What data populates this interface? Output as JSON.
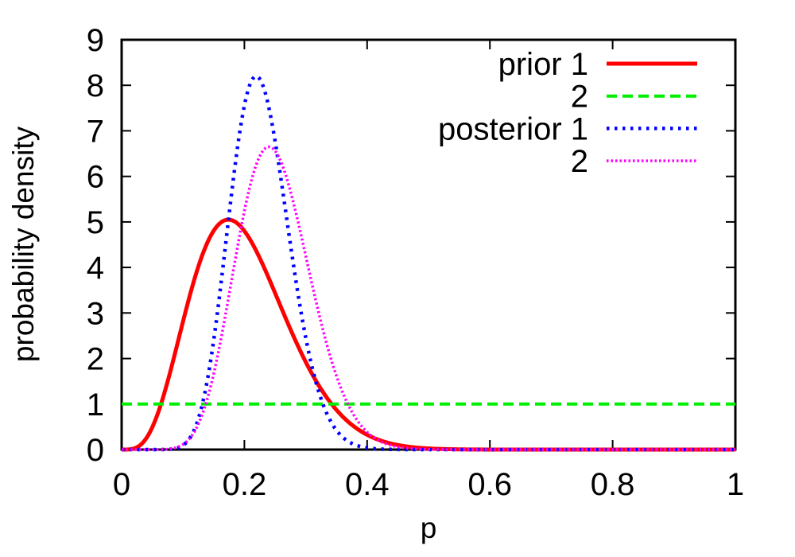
{
  "figure": {
    "background": "#ffffff",
    "text_color": "#000000"
  },
  "chart_data": {
    "type": "line",
    "title": "",
    "xlabel": "p",
    "ylabel": "probability density",
    "xlim": [
      0,
      1
    ],
    "ylim": [
      0,
      9
    ],
    "grid": false,
    "tick_style": "inward-mirrored",
    "legend_position": "top-right-inside",
    "xticks": {
      "values": [
        0,
        0.2,
        0.4,
        0.6,
        0.8,
        1
      ],
      "labels": [
        "0",
        "0.2",
        "0.4",
        "0.6",
        "0.8",
        "1"
      ]
    },
    "yticks": {
      "values": [
        0,
        1,
        2,
        3,
        4,
        5,
        6,
        7,
        8,
        9
      ],
      "labels": [
        "0",
        "1",
        "2",
        "3",
        "4",
        "5",
        "6",
        "7",
        "8",
        "9"
      ]
    },
    "series": [
      {
        "name": "prior-1",
        "legend": "prior 1",
        "color": "#ff0000",
        "line_style": "solid",
        "line_width": 5,
        "distribution": {
          "type": "beta",
          "alpha": 5,
          "beta": 20
        },
        "peak_x": 0.17,
        "peak_density": 5.05
      },
      {
        "name": "prior-2",
        "legend": "2",
        "color": "#00ee00",
        "line_style": "dashed",
        "line_width": 4,
        "distribution": {
          "type": "uniform"
        },
        "constant_density": 1.0
      },
      {
        "name": "posterior-1",
        "legend": "posterior 1",
        "color": "#0000ff",
        "line_style": "dotted",
        "line_width": 4.5,
        "distribution": {
          "type": "beta",
          "alpha": 17,
          "beta": 58
        },
        "peak_x": 0.22,
        "peak_density": 8.2
      },
      {
        "name": "posterior-2",
        "legend": "2",
        "color": "#ff00ff",
        "line_style": "fine-dotted",
        "line_width": 3.5,
        "distribution": {
          "type": "beta",
          "alpha": 13,
          "beta": 39
        },
        "peak_x": 0.24,
        "peak_density": 6.65
      }
    ]
  }
}
